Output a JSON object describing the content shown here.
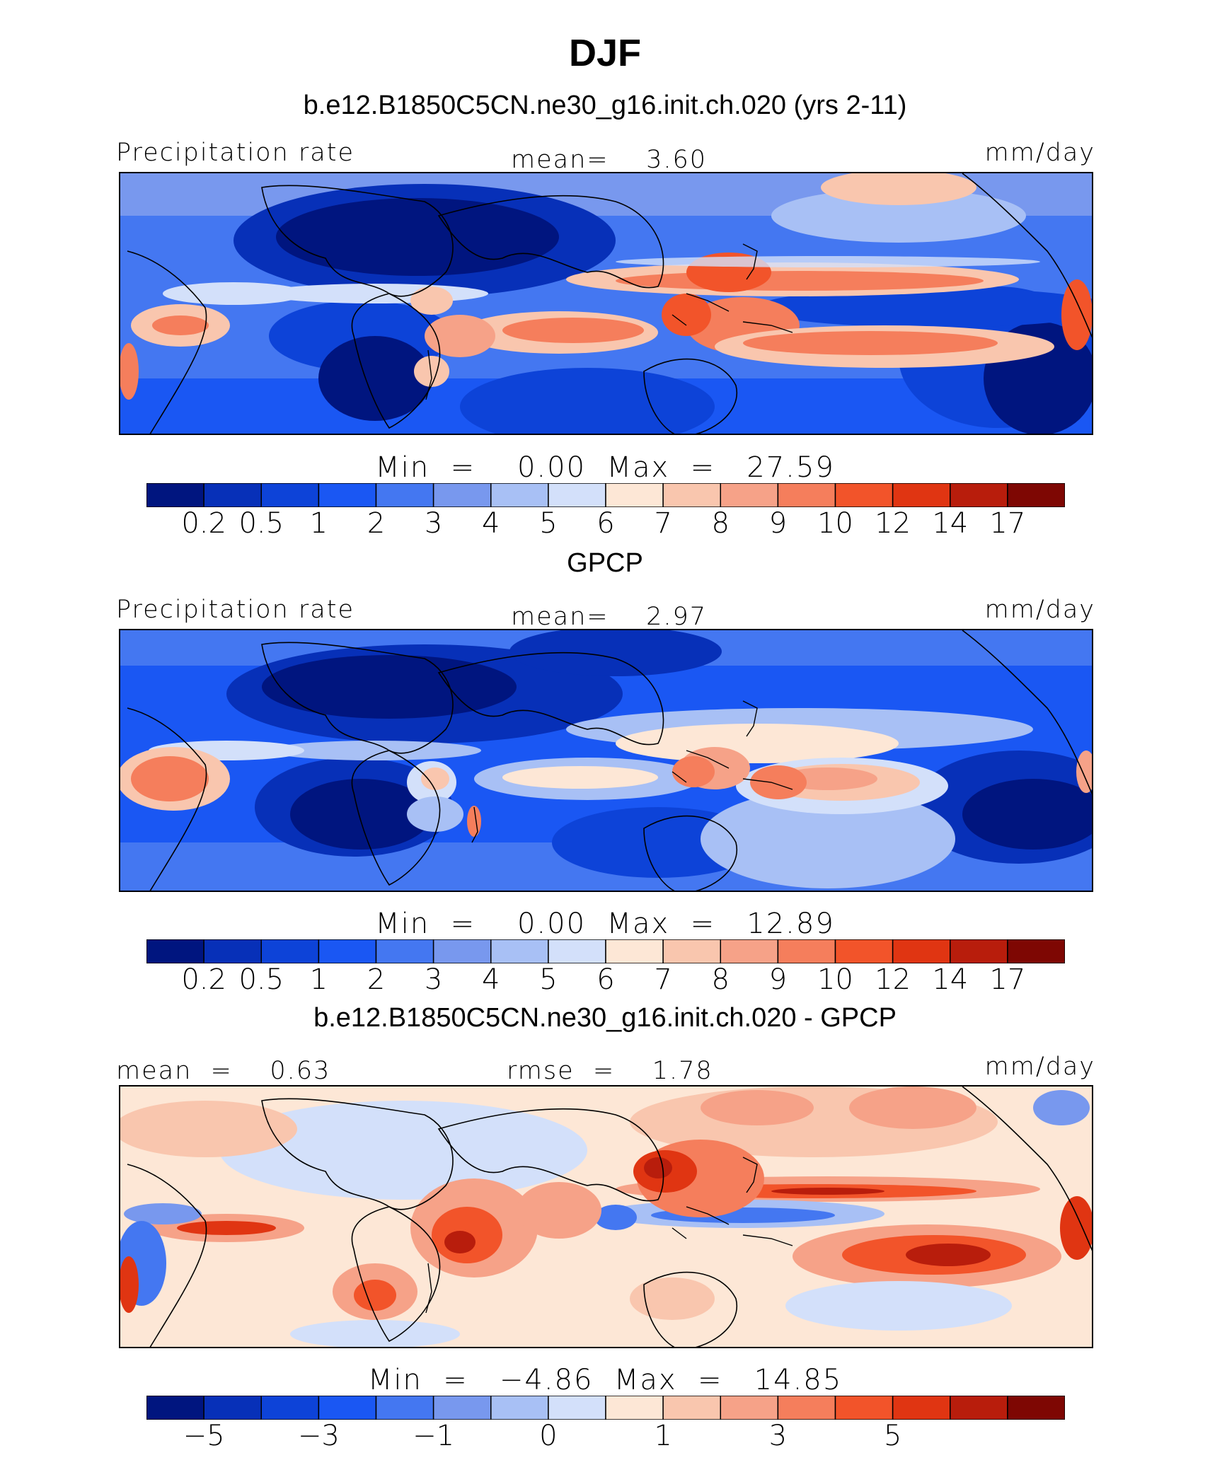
{
  "title": "DJF",
  "colors": {
    "palette": [
      "#00157f",
      "#0730b8",
      "#0d43d8",
      "#1a57f3",
      "#4477f1",
      "#7898ee",
      "#a8c0f5",
      "#d3e0fa",
      "#fde7d6",
      "#f9c6ae",
      "#f6a288",
      "#f57e5c",
      "#f2542a",
      "#e03512",
      "#b81d0c",
      "#7e0703"
    ],
    "land_outline": "#000000"
  },
  "panels": [
    {
      "subtitle": "b.e12.B1850C5CN.ne30_g16.init.ch.020 (yrs 2-11)",
      "left_label": "Precipitation rate",
      "center_label": "mean=    3.60",
      "right_label": "mm/day",
      "min_max": "Min  =    0.00  Max  =   27.59",
      "colorbar_ticks": [
        "0.2",
        "0.5",
        "1",
        "2",
        "3",
        "4",
        "5",
        "6",
        "7",
        "8",
        "9",
        "10",
        "12",
        "14",
        "17"
      ]
    },
    {
      "subtitle": "GPCP",
      "left_label": "Precipitation rate",
      "center_label": "mean=    2.97",
      "right_label": "mm/day",
      "min_max": "Min  =    0.00  Max  =   12.89",
      "colorbar_ticks": [
        "0.2",
        "0.5",
        "1",
        "2",
        "3",
        "4",
        "5",
        "6",
        "7",
        "8",
        "9",
        "10",
        "12",
        "14",
        "17"
      ]
    },
    {
      "subtitle": "b.e12.B1850C5CN.ne30_g16.init.ch.020 - GPCP",
      "left_label": "mean  =    0.63",
      "center_label": "rmse  =    1.78",
      "right_label": "mm/day",
      "min_max": "Min  =   −4.86  Max  =   14.85",
      "colorbar_ticks": [
        "−5",
        "−3",
        "−1",
        "0",
        "1",
        "3",
        "5"
      ]
    }
  ],
  "chart_data": [
    {
      "type": "heatmap",
      "title": "b.e12.B1850C5CN.ne30_g16.init.ch.020 (yrs 2-11)",
      "variable": "Precipitation rate",
      "units": "mm/day",
      "mean": 3.6,
      "min": 0.0,
      "max": 27.59,
      "levels": [
        0.2,
        0.5,
        1,
        2,
        3,
        4,
        5,
        6,
        7,
        8,
        9,
        10,
        12,
        14,
        17
      ]
    },
    {
      "type": "heatmap",
      "title": "GPCP",
      "variable": "Precipitation rate",
      "units": "mm/day",
      "mean": 2.97,
      "min": 0.0,
      "max": 12.89,
      "levels": [
        0.2,
        0.5,
        1,
        2,
        3,
        4,
        5,
        6,
        7,
        8,
        9,
        10,
        12,
        14,
        17
      ]
    },
    {
      "type": "heatmap",
      "title": "b.e12.B1850C5CN.ne30_g16.init.ch.020 - GPCP",
      "units": "mm/day",
      "mean": 0.63,
      "rmse": 1.78,
      "min": -4.86,
      "max": 14.85,
      "levels_labeled": [
        -5,
        -3,
        -1,
        0,
        1,
        3,
        5
      ]
    }
  ]
}
